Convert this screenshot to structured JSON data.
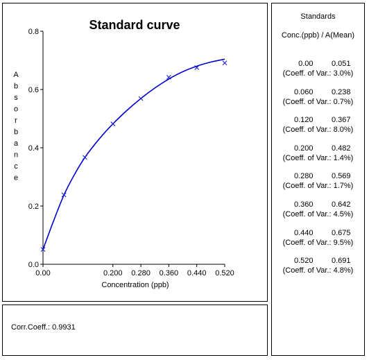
{
  "chart_data": {
    "type": "scatter",
    "title": "Standard curve",
    "xlabel": "Concentration (ppb)",
    "ylabel": "Absorbance",
    "xlim": [
      0,
      0.52
    ],
    "ylim": [
      0,
      0.8
    ],
    "x_ticks": [
      0.0,
      0.2,
      0.28,
      0.36,
      0.44,
      0.52
    ],
    "x_tick_labels": [
      "0.00",
      "0.200",
      "0.280",
      "0.360",
      "0.440",
      "0.520"
    ],
    "y_ticks": [
      0,
      0.2,
      0.4,
      0.6,
      0.8
    ],
    "y_tick_labels": [
      "0.0",
      "0.2",
      "0.4",
      "0.6",
      "0.8"
    ],
    "grid": false,
    "series": [
      {
        "points": [
          [
            0.0,
            0.051
          ],
          [
            0.06,
            0.238
          ],
          [
            0.12,
            0.367
          ],
          [
            0.2,
            0.482
          ],
          [
            0.28,
            0.569
          ],
          [
            0.36,
            0.642
          ],
          [
            0.44,
            0.675
          ],
          [
            0.52,
            0.691
          ]
        ],
        "marker": "x",
        "color": "#1a1adb"
      }
    ],
    "fit_curve": {
      "color": "#0000cc",
      "points": [
        [
          0.0,
          0.051
        ],
        [
          0.03,
          0.148
        ],
        [
          0.06,
          0.238
        ],
        [
          0.09,
          0.308
        ],
        [
          0.12,
          0.367
        ],
        [
          0.16,
          0.429
        ],
        [
          0.2,
          0.482
        ],
        [
          0.24,
          0.528
        ],
        [
          0.28,
          0.569
        ],
        [
          0.32,
          0.605
        ],
        [
          0.36,
          0.636
        ],
        [
          0.4,
          0.661
        ],
        [
          0.44,
          0.68
        ],
        [
          0.48,
          0.694
        ],
        [
          0.52,
          0.704
        ]
      ]
    }
  },
  "correlation": {
    "label": "Corr.Coeff.: 0.9931"
  },
  "standards": {
    "title": "Standards",
    "header": "Conc.(ppb) / A(Mean)",
    "cv_prefix": "(Coeff. of Var.:",
    "items": [
      {
        "conc": "0.00",
        "abs": "0.051",
        "cv": "(Coeff. of Var.: 3.0%)"
      },
      {
        "conc": "0.060",
        "abs": "0.238",
        "cv": "(Coeff. of Var.: 0.7%)"
      },
      {
        "conc": "0.120",
        "abs": "0.367",
        "cv": "(Coeff. of Var.: 8.0%)"
      },
      {
        "conc": "0.200",
        "abs": "0.482",
        "cv": "(Coeff. of Var.: 1.4%)"
      },
      {
        "conc": "0.280",
        "abs": "0.569",
        "cv": "(Coeff. of Var.: 1.7%)"
      },
      {
        "conc": "0.360",
        "abs": "0.642",
        "cv": "(Coeff. of Var.: 4.5%)"
      },
      {
        "conc": "0.440",
        "abs": "0.675",
        "cv": "(Coeff. of Var.: 9.5%)"
      },
      {
        "conc": "0.520",
        "abs": "0.691",
        "cv": "(Coeff. of Var.: 4.8%)"
      }
    ]
  }
}
